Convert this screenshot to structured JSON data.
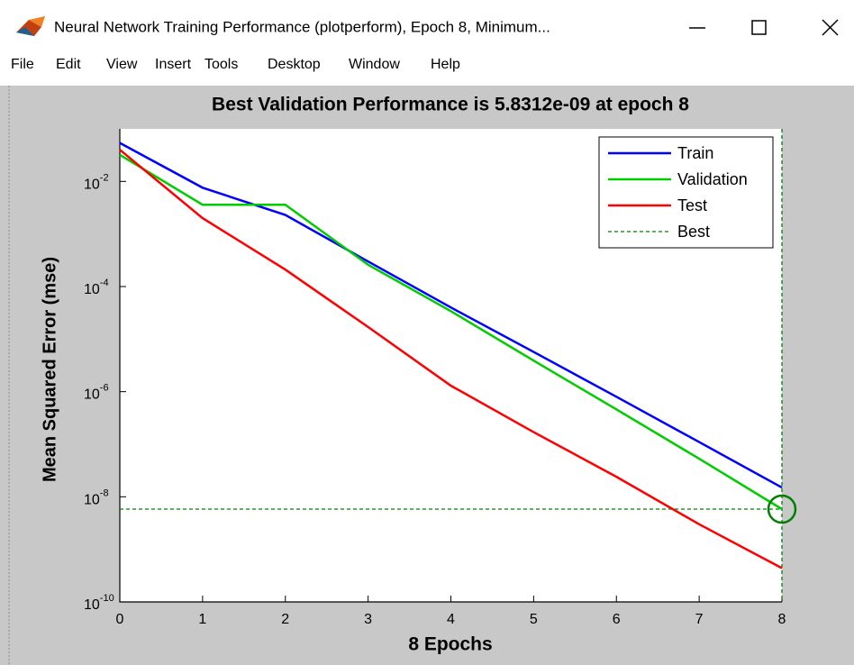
{
  "window": {
    "title": "Neural Network Training Performance (plotperform), Epoch 8, Minimum...",
    "menu": [
      "File",
      "Edit",
      "View",
      "Insert",
      "Tools",
      "Desktop",
      "Window",
      "Help"
    ]
  },
  "chart_data": {
    "type": "line",
    "title": "Best Validation Performance is 5.8312e-09 at epoch 8",
    "xlabel": "8 Epochs",
    "ylabel": "Mean Squared Error  (mse)",
    "x": [
      0,
      1,
      2,
      3,
      4,
      5,
      6,
      7,
      8
    ],
    "series": [
      {
        "name": "Train",
        "color": "#0000ff",
        "values": [
          0.054,
          0.0076,
          0.0023,
          0.0003,
          4e-05,
          5.7e-06,
          8e-07,
          1.1e-07,
          1.5e-08
        ]
      },
      {
        "name": "Validation",
        "color": "#00cc00",
        "values": [
          0.032,
          0.0036,
          0.0036,
          0.00026,
          3.4e-05,
          3.9e-06,
          4.6e-07,
          5.3e-08,
          5.8312e-09
        ]
      },
      {
        "name": "Test",
        "color": "#ff0000",
        "values": [
          0.04,
          0.002,
          0.00021,
          1.7e-05,
          1.3e-06,
          1.7e-07,
          2.4e-08,
          3e-09,
          4.4e-10
        ]
      }
    ],
    "best": {
      "name": "Best",
      "color": "#008000",
      "epoch": 8,
      "value": 5.8312e-09
    },
    "xlim": [
      0,
      8
    ],
    "xticks": [
      0,
      1,
      2,
      3,
      4,
      5,
      6,
      7,
      8
    ],
    "ylim": [
      1e-10,
      0.1
    ],
    "log_y": true,
    "yticks": [
      {
        "value": 1e-10,
        "label": "10",
        "sup": "-10"
      },
      {
        "value": 1e-08,
        "label": "10",
        "sup": "-8"
      },
      {
        "value": 1e-06,
        "label": "10",
        "sup": "-6"
      },
      {
        "value": 0.0001,
        "label": "10",
        "sup": "-4"
      },
      {
        "value": 0.01,
        "label": "10",
        "sup": "-2"
      }
    ],
    "legend": "northeast"
  }
}
